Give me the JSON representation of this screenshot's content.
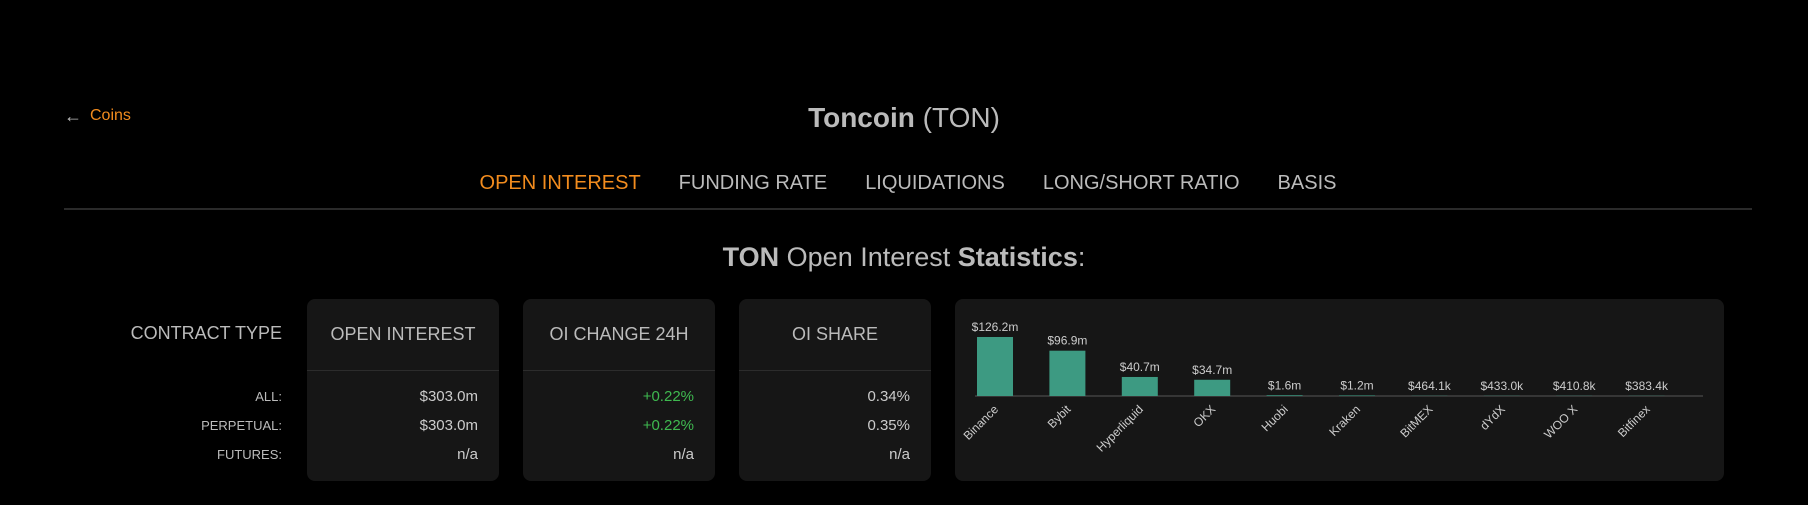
{
  "nav": {
    "back_label": "Coins"
  },
  "coin": {
    "name": "Toncoin",
    "symbol": "(TON)"
  },
  "tabs": [
    {
      "label": "OPEN INTEREST",
      "active": true
    },
    {
      "label": "FUNDING RATE",
      "active": false
    },
    {
      "label": "LIQUIDATIONS",
      "active": false
    },
    {
      "label": "LONG/SHORT RATIO",
      "active": false
    },
    {
      "label": "BASIS",
      "active": false
    }
  ],
  "section": {
    "symbol": "TON",
    "middle": "Open Interest",
    "bold": "Statistics",
    "suffix": ":"
  },
  "table": {
    "contract_type_header": "CONTRACT TYPE",
    "rows": [
      "ALL:",
      "PERPETUAL:",
      "FUTURES:"
    ],
    "columns": [
      {
        "header": "OPEN INTEREST",
        "values": [
          "$303.0m",
          "$303.0m",
          "n/a"
        ]
      },
      {
        "header": "OI CHANGE 24H",
        "values": [
          "+0.22%",
          "+0.22%",
          "n/a"
        ]
      },
      {
        "header": "OI SHARE",
        "values": [
          "0.34%",
          "0.35%",
          "n/a"
        ]
      }
    ]
  },
  "colors": {
    "accent": "#f28c1e",
    "positive": "#3fb950",
    "bar": "#3d9a82"
  },
  "chart_data": {
    "type": "bar",
    "categories": [
      "Binance",
      "Bybit",
      "Hyperliquid",
      "OKX",
      "Huobi",
      "Kraken",
      "BitMEX",
      "dYdX",
      "WOO X",
      "Bitfinex"
    ],
    "values": [
      126.2,
      96.9,
      40.7,
      34.7,
      1.6,
      1.2,
      0.4641,
      0.433,
      0.4108,
      0.3834
    ],
    "labels": [
      "$126.2m",
      "$96.9m",
      "$40.7m",
      "$34.7m",
      "$1.6m",
      "$1.2m",
      "$464.1k",
      "$433.0k",
      "$410.8k",
      "$383.4k"
    ],
    "ylabel": "",
    "ylim": [
      0,
      126.2
    ],
    "grid": false,
    "legend": "none"
  }
}
